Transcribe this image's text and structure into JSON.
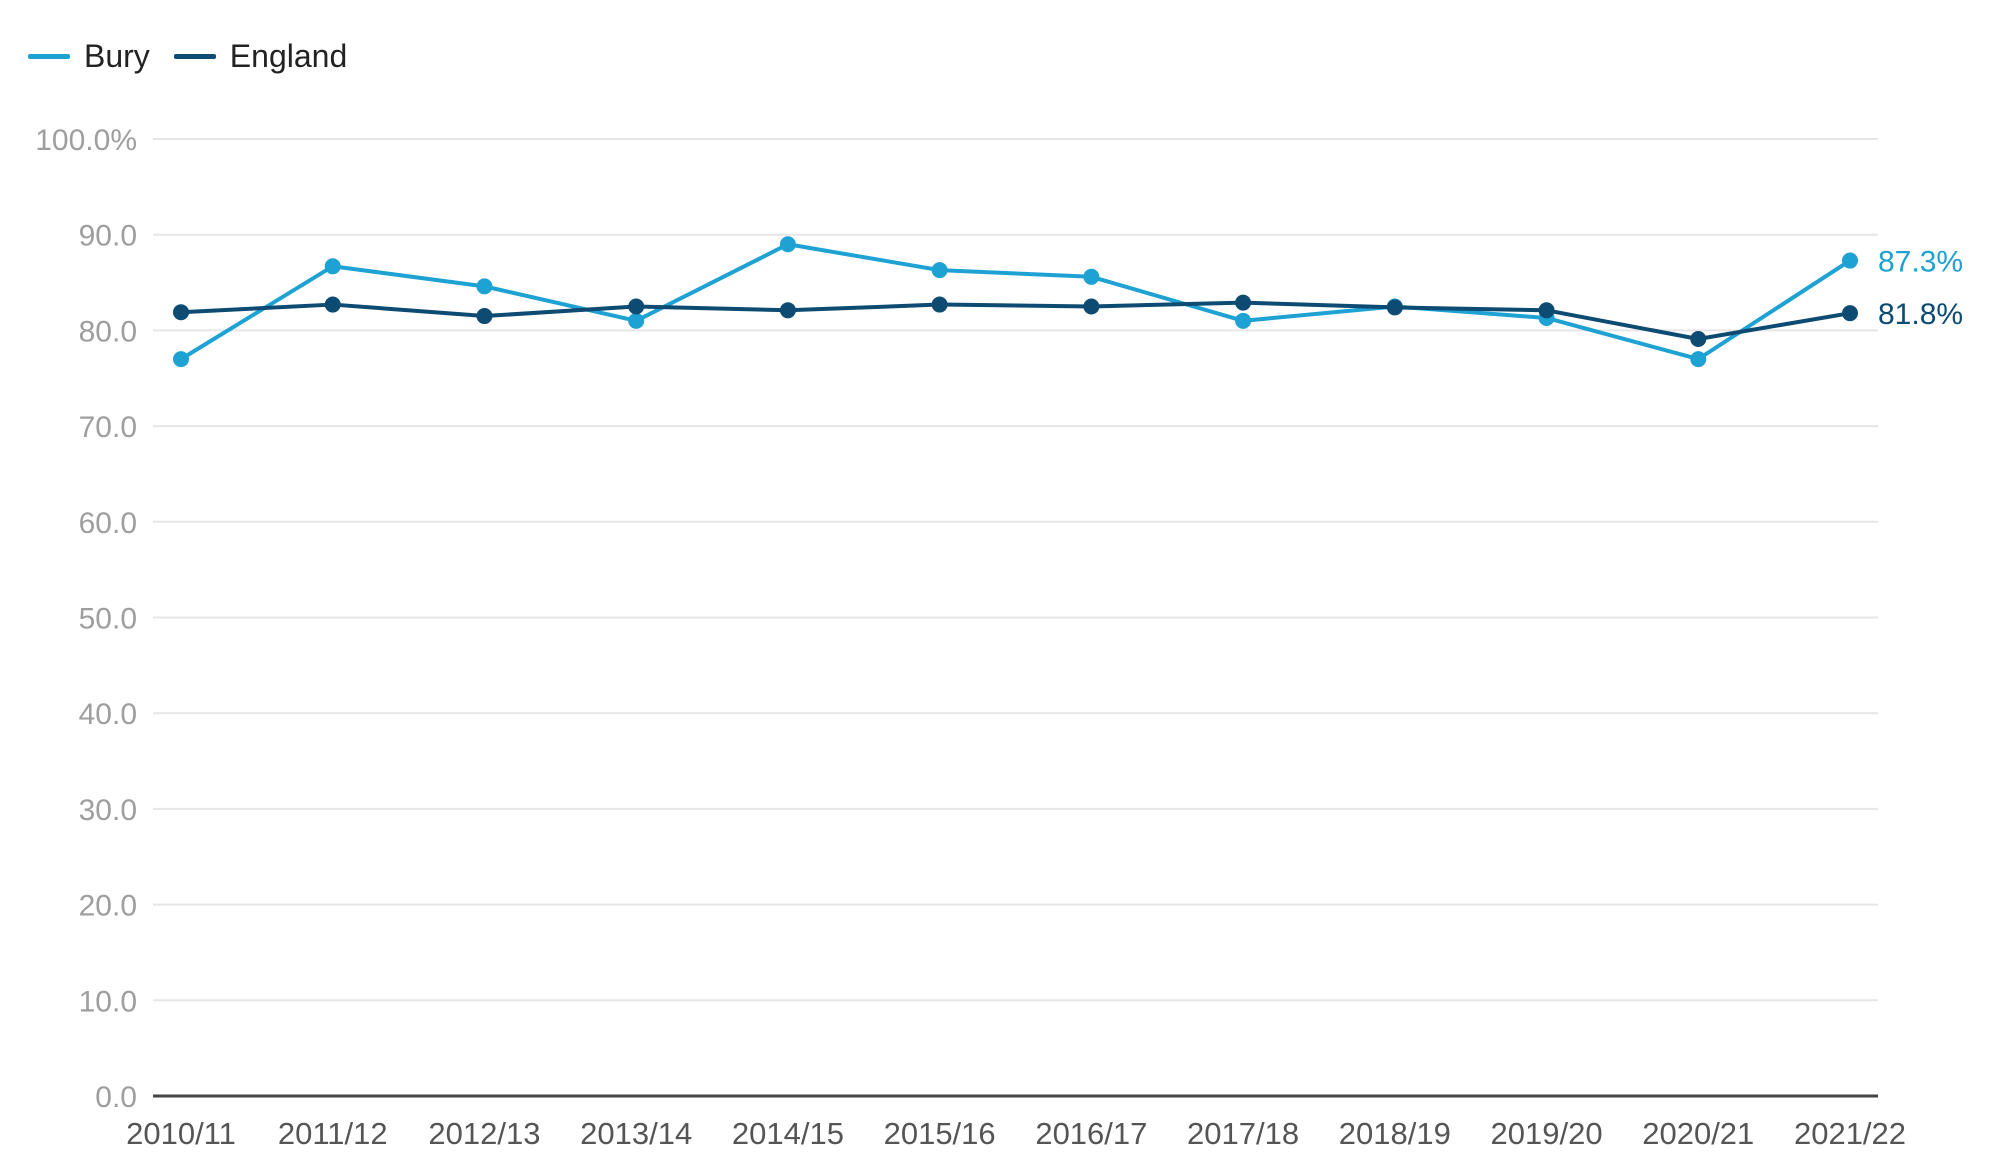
{
  "chart_data": {
    "type": "line",
    "categories": [
      "2010/11",
      "2011/12",
      "2012/13",
      "2013/14",
      "2014/15",
      "2015/16",
      "2016/17",
      "2017/18",
      "2018/19",
      "2019/20",
      "2020/21",
      "2021/22"
    ],
    "series": [
      {
        "name": "Bury",
        "color": "#1ea1d3",
        "values": [
          77.0,
          86.7,
          84.6,
          81.0,
          89.0,
          86.3,
          85.6,
          81.0,
          82.5,
          81.3,
          77.0,
          87.3
        ],
        "end_label": "87.3%"
      },
      {
        "name": "England",
        "color": "#0d4b72",
        "values": [
          81.9,
          82.7,
          81.5,
          82.5,
          82.1,
          82.7,
          82.5,
          82.9,
          82.4,
          82.1,
          79.1,
          81.8
        ],
        "end_label": "81.8%"
      }
    ],
    "y_ticks": [
      "0.0",
      "10.0",
      "20.0",
      "30.0",
      "40.0",
      "50.0",
      "60.0",
      "70.0",
      "80.0",
      "90.0",
      "100.0%"
    ],
    "ylim": [
      0,
      100
    ],
    "grid": true,
    "legend_position": "top-left"
  }
}
